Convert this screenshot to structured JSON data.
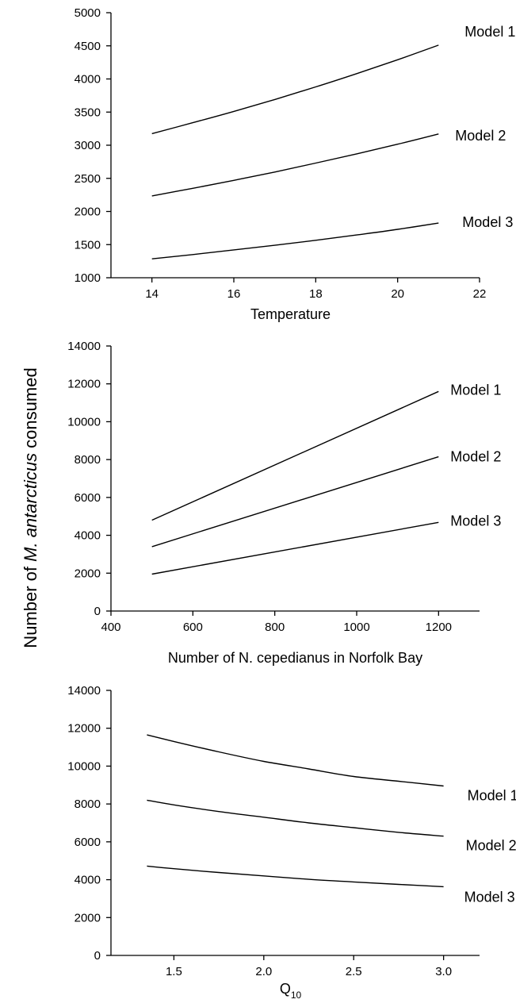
{
  "figure": {
    "ylabel_prefix": "Number of ",
    "ylabel_species": "M. antarcticus",
    "ylabel_suffix": " consumed"
  },
  "chart_data": [
    {
      "type": "line",
      "xlabel": "Temperature",
      "xlim": [
        13,
        22
      ],
      "ylim": [
        1000,
        5000
      ],
      "xticks": [
        14,
        16,
        18,
        20,
        22
      ],
      "yticks": [
        1000,
        1500,
        2000,
        2500,
        3000,
        3500,
        4000,
        4500,
        5000
      ],
      "xtick_labels": [
        "14",
        "16",
        "18",
        "20",
        "22"
      ],
      "ytick_labels": [
        "1000",
        "1500",
        "2000",
        "2500",
        "3000",
        "3500",
        "4000",
        "4500",
        "5000"
      ],
      "series": [
        {
          "name": "Model 1",
          "x": [
            14,
            15,
            16,
            17,
            18,
            19,
            20,
            21
          ],
          "y": [
            3175,
            3340,
            3510,
            3690,
            3880,
            4080,
            4290,
            4510
          ]
        },
        {
          "name": "Model 2",
          "x": [
            14,
            15,
            16,
            17,
            18,
            19,
            20,
            21
          ],
          "y": [
            2235,
            2350,
            2470,
            2595,
            2730,
            2870,
            3015,
            3170
          ]
        },
        {
          "name": "Model 3",
          "x": [
            14,
            15,
            16,
            17,
            18,
            19,
            20,
            21
          ],
          "y": [
            1285,
            1350,
            1420,
            1490,
            1565,
            1645,
            1730,
            1825
          ]
        }
      ]
    },
    {
      "type": "line",
      "xlabel": "Number of N. cepedianus in Norfolk Bay",
      "xlim": [
        400,
        1300
      ],
      "ylim": [
        0,
        14000
      ],
      "xticks": [
        400,
        600,
        800,
        1000,
        1200
      ],
      "yticks": [
        0,
        2000,
        4000,
        6000,
        8000,
        10000,
        12000,
        14000
      ],
      "xtick_labels": [
        "400",
        "600",
        "800",
        "1000",
        "1200"
      ],
      "ytick_labels": [
        "0",
        "2000",
        "4000",
        "6000",
        "8000",
        "10000",
        "12000",
        "14000"
      ],
      "series": [
        {
          "name": "Model 1",
          "x": [
            500,
            1200
          ],
          "y": [
            4800,
            11600
          ]
        },
        {
          "name": "Model 2",
          "x": [
            500,
            1200
          ],
          "y": [
            3400,
            8150
          ]
        },
        {
          "name": "Model 3",
          "x": [
            500,
            1200
          ],
          "y": [
            1950,
            4680
          ]
        }
      ]
    },
    {
      "type": "line",
      "xlabel_main": "Q",
      "xlabel_sub": "10",
      "xlim": [
        1.15,
        3.2
      ],
      "ylim": [
        0,
        14000
      ],
      "xticks": [
        1.5,
        2.0,
        2.5,
        3.0
      ],
      "yticks": [
        0,
        2000,
        4000,
        6000,
        8000,
        10000,
        12000,
        14000
      ],
      "xtick_labels": [
        "1.5",
        "2.0",
        "2.5",
        "3.0"
      ],
      "ytick_labels": [
        "0",
        "2000",
        "4000",
        "6000",
        "8000",
        "10000",
        "12000",
        "14000"
      ],
      "series": [
        {
          "name": "Model 1",
          "x": [
            1.35,
            1.5,
            1.75,
            2.0,
            2.25,
            2.5,
            2.75,
            3.0
          ],
          "y": [
            11650,
            11300,
            10750,
            10250,
            9850,
            9450,
            9200,
            8950
          ]
        },
        {
          "name": "Model 2",
          "x": [
            1.35,
            1.5,
            1.75,
            2.0,
            2.25,
            2.5,
            2.75,
            3.0
          ],
          "y": [
            8200,
            7950,
            7600,
            7300,
            7000,
            6750,
            6500,
            6300
          ]
        },
        {
          "name": "Model 3",
          "x": [
            1.35,
            1.5,
            1.75,
            2.0,
            2.25,
            2.5,
            2.75,
            3.0
          ],
          "y": [
            4720,
            4580,
            4380,
            4200,
            4020,
            3880,
            3750,
            3630
          ]
        }
      ]
    }
  ]
}
